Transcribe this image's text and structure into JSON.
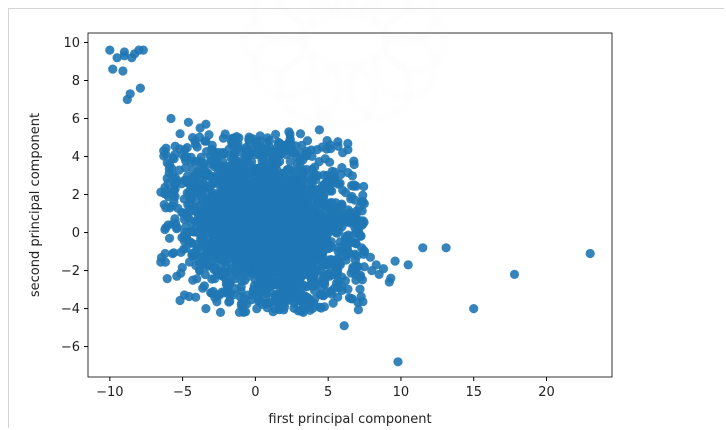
{
  "chart_data": {
    "type": "scatter",
    "title": "",
    "xlabel": "first principal component",
    "ylabel": "second principal component",
    "xlim": [
      -11.5,
      24.5
    ],
    "ylim": [
      -7.6,
      10.5
    ],
    "xticks": [
      -10,
      -5,
      0,
      5,
      10,
      15,
      20
    ],
    "yticks": [
      -6,
      -4,
      -2,
      0,
      2,
      4,
      6,
      8,
      10
    ],
    "xtick_labels": [
      "−10",
      "−5",
      "0",
      "5",
      "10",
      "15",
      "20"
    ],
    "ytick_labels": [
      "−6",
      "−4",
      "−2",
      "0",
      "2",
      "4",
      "6",
      "8",
      "10"
    ],
    "grid": false,
    "legend": "none",
    "marker_color": "#1f77b4",
    "series": [
      {
        "x": [
          -10.0,
          -9.5,
          -9.0,
          -8.5,
          -8.0,
          -9.8,
          -9.1,
          -8.6,
          -8.8,
          -7.9,
          -9.0,
          -8.3,
          -7.7,
          -5.8,
          -4.6,
          -3.8,
          -3.4,
          -5.2,
          -4.0,
          -6.3,
          -5.0,
          -2.6,
          -3.1,
          -1.4,
          2.3,
          4.4,
          3.1,
          4.6,
          5.1,
          6.0,
          6.2,
          5.8,
          6.3,
          6.5,
          7.3,
          7.5,
          7.9,
          8.3,
          8.0,
          8.5,
          8.8,
          9.2,
          9.6,
          10.5,
          11.5,
          13.1,
          15.0,
          17.8,
          23.0,
          9.8,
          9.3,
          6.1,
          -5.4,
          -4.1,
          -3.4,
          -2.4,
          -1.1,
          -0.8,
          0.8,
          2.0,
          2.8,
          -2.9,
          -4.3,
          -6.2,
          -5.9,
          -5.6,
          -6.0,
          -4.8,
          -4.4,
          1.3,
          3.6,
          -3.5,
          5.2,
          6.5
        ],
        "y": [
          9.6,
          9.2,
          9.5,
          9.2,
          9.6,
          8.6,
          8.5,
          7.3,
          7.0,
          7.6,
          9.3,
          9.4,
          9.6,
          6.0,
          5.8,
          5.5,
          5.7,
          4.4,
          4.5,
          4.3,
          4.1,
          4.0,
          3.6,
          3.7,
          5.3,
          5.4,
          5.2,
          4.5,
          3.7,
          4.2,
          2.1,
          1.1,
          1.0,
          -0.5,
          -0.8,
          -1.0,
          -1.3,
          -1.7,
          -2.0,
          -2.2,
          -1.9,
          -2.6,
          -1.5,
          -1.7,
          -0.8,
          -0.8,
          -4.0,
          -2.2,
          -1.1,
          -6.8,
          -2.4,
          -4.9,
          -2.3,
          -3.4,
          -4.0,
          -4.2,
          -4.2,
          -4.2,
          -3.2,
          -3.9,
          -3.4,
          -3.1,
          -2.5,
          -1.1,
          -0.3,
          1.6,
          2.6,
          3.4,
          3.7,
          -4.0,
          -3.8,
          -2.8,
          0.9,
          0.6
        ]
      }
    ],
    "dense_cluster": {
      "center": [
        0.8,
        0.4
      ],
      "spread": [
        3.0,
        2.0
      ],
      "count": 2600
    }
  }
}
